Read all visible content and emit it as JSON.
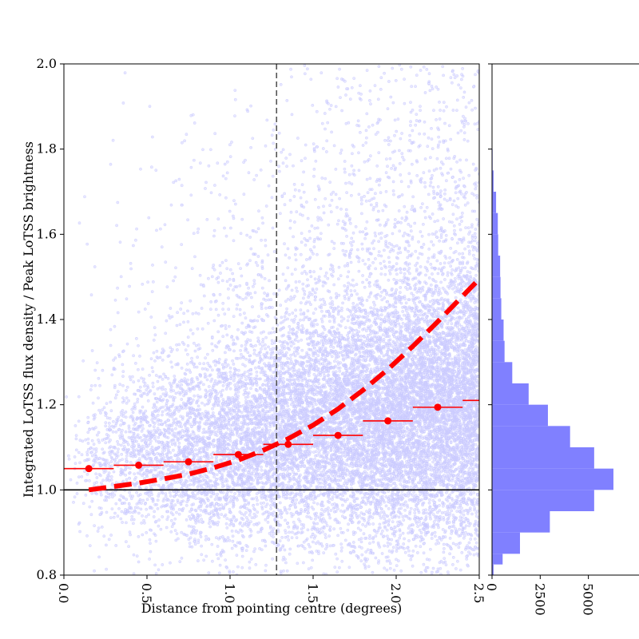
{
  "chart_data": [
    {
      "type": "scatter",
      "title": "",
      "xlabel": "Distance from pointing centre (degrees)",
      "ylabel": "Integrated LoTSS flux density / Peak LoTSS brightness",
      "xlim": [
        0.0,
        2.5
      ],
      "ylim": [
        0.8,
        2.0
      ],
      "x_ticks": [
        "0.0",
        "0.5",
        "1.0",
        "1.5",
        "2.0",
        "2.5"
      ],
      "y_ticks": [
        "0.8",
        "1.0",
        "1.2",
        "1.4",
        "1.6",
        "1.8",
        "2.0"
      ],
      "x_tick_values": [
        0.0,
        0.5,
        1.0,
        1.5,
        2.0,
        2.5
      ],
      "y_tick_values": [
        0.8,
        1.0,
        1.2,
        1.4,
        1.6,
        1.8,
        2.0
      ],
      "grid": false,
      "colors": {
        "scatter": "#0000ff",
        "binned": "#ff0000",
        "fit": "#ff0000",
        "reference": "#000000",
        "cutoff": "#555555"
      },
      "scatter_density_model": {
        "description_of_cloud": "dense blue point cloud, peak around y=1.05-1.10, spread increasing with distance",
        "x_range": [
          0.0,
          2.5
        ],
        "approx_points": 16000
      },
      "binned_medians": {
        "x": [
          0.15,
          0.45,
          0.75,
          1.05,
          1.35,
          1.65,
          1.95,
          2.25,
          2.55
        ],
        "y": [
          1.05,
          1.058,
          1.066,
          1.083,
          1.107,
          1.128,
          1.162,
          1.194,
          1.21
        ],
        "xerr": 0.15
      },
      "fit_curve": {
        "x": [
          0.15,
          0.3,
          0.45,
          0.6,
          0.75,
          0.9,
          1.05,
          1.2,
          1.35,
          1.5,
          1.65,
          1.8,
          1.95,
          2.1,
          2.25,
          2.4,
          2.5
        ],
        "y": [
          1.0,
          1.008,
          1.016,
          1.026,
          1.037,
          1.052,
          1.07,
          1.093,
          1.12,
          1.152,
          1.19,
          1.234,
          1.283,
          1.337,
          1.395,
          1.455,
          1.495
        ]
      },
      "horizontal_reference_y": 1.0,
      "vertical_cutoff_x": 1.28
    },
    {
      "type": "bar",
      "orientation": "horizontal",
      "title": "",
      "xlabel": "",
      "ylabel": "",
      "xlim": [
        0,
        6300
      ],
      "ylim": [
        0.8,
        2.0
      ],
      "x_ticks": [
        "0",
        "2500",
        "5000"
      ],
      "x_tick_values": [
        0,
        2500,
        5000
      ],
      "color": "#8080ff",
      "bin_edges": [
        0.8,
        0.825,
        0.85,
        0.9,
        0.95,
        1.0,
        1.05,
        1.1,
        1.15,
        1.2,
        1.25,
        1.3,
        1.35,
        1.4,
        1.45,
        1.5,
        1.55,
        1.6,
        1.65,
        1.7,
        1.75,
        1.8
      ],
      "counts": [
        80,
        550,
        1450,
        3000,
        5300,
        6300,
        5300,
        4050,
        2900,
        1900,
        1050,
        650,
        600,
        480,
        440,
        420,
        320,
        300,
        210,
        80,
        30
      ]
    }
  ]
}
